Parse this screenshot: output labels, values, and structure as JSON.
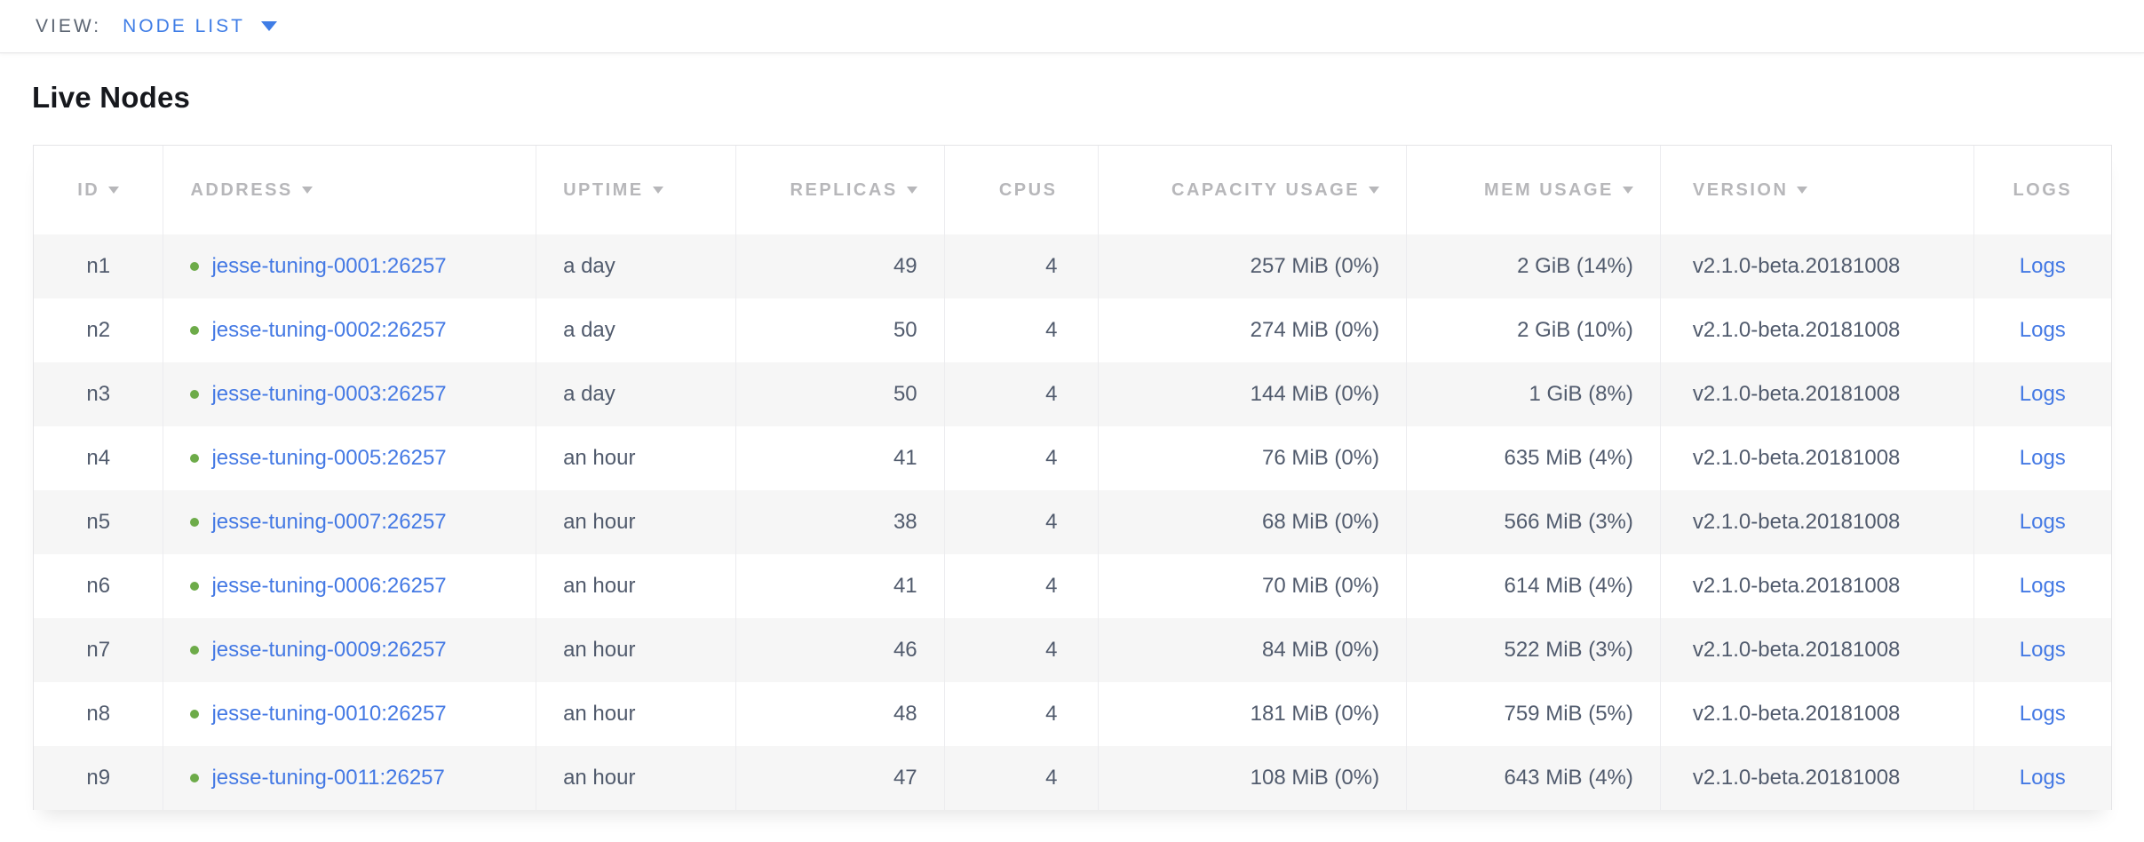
{
  "view_bar": {
    "label": "VIEW:",
    "selected": "NODE LIST"
  },
  "page": {
    "title": "Live Nodes"
  },
  "colors": {
    "link_blue": "#4479e4",
    "dropdown_blue": "#3f7de6",
    "node_live_green": "#6dab49",
    "header_gray": "#b7b7ba",
    "cell_text": "#515b6d",
    "row_stripe": "#f6f6f6"
  },
  "table": {
    "logs_label": "Logs",
    "columns": [
      {
        "key": "id",
        "label": "ID",
        "sortable": true
      },
      {
        "key": "address",
        "label": "ADDRESS",
        "sortable": true
      },
      {
        "key": "uptime",
        "label": "UPTIME",
        "sortable": true
      },
      {
        "key": "replicas",
        "label": "REPLICAS",
        "sortable": true
      },
      {
        "key": "cpus",
        "label": "CPUS",
        "sortable": false
      },
      {
        "key": "capacity_usage",
        "label": "CAPACITY USAGE",
        "sortable": true
      },
      {
        "key": "mem_usage",
        "label": "MEM USAGE",
        "sortable": true
      },
      {
        "key": "version",
        "label": "VERSION",
        "sortable": true
      },
      {
        "key": "logs",
        "label": "LOGS",
        "sortable": false
      }
    ],
    "rows": [
      {
        "id": "n1",
        "address": "jesse-tuning-0001:26257",
        "uptime": "a day",
        "replicas": "49",
        "cpus": "4",
        "capacity_usage": "257 MiB (0%)",
        "mem_usage": "2 GiB (14%)",
        "version": "v2.1.0-beta.20181008"
      },
      {
        "id": "n2",
        "address": "jesse-tuning-0002:26257",
        "uptime": "a day",
        "replicas": "50",
        "cpus": "4",
        "capacity_usage": "274 MiB (0%)",
        "mem_usage": "2 GiB (10%)",
        "version": "v2.1.0-beta.20181008"
      },
      {
        "id": "n3",
        "address": "jesse-tuning-0003:26257",
        "uptime": "a day",
        "replicas": "50",
        "cpus": "4",
        "capacity_usage": "144 MiB (0%)",
        "mem_usage": "1 GiB (8%)",
        "version": "v2.1.0-beta.20181008"
      },
      {
        "id": "n4",
        "address": "jesse-tuning-0005:26257",
        "uptime": "an hour",
        "replicas": "41",
        "cpus": "4",
        "capacity_usage": "76 MiB (0%)",
        "mem_usage": "635 MiB (4%)",
        "version": "v2.1.0-beta.20181008"
      },
      {
        "id": "n5",
        "address": "jesse-tuning-0007:26257",
        "uptime": "an hour",
        "replicas": "38",
        "cpus": "4",
        "capacity_usage": "68 MiB (0%)",
        "mem_usage": "566 MiB (3%)",
        "version": "v2.1.0-beta.20181008"
      },
      {
        "id": "n6",
        "address": "jesse-tuning-0006:26257",
        "uptime": "an hour",
        "replicas": "41",
        "cpus": "4",
        "capacity_usage": "70 MiB (0%)",
        "mem_usage": "614 MiB (4%)",
        "version": "v2.1.0-beta.20181008"
      },
      {
        "id": "n7",
        "address": "jesse-tuning-0009:26257",
        "uptime": "an hour",
        "replicas": "46",
        "cpus": "4",
        "capacity_usage": "84 MiB (0%)",
        "mem_usage": "522 MiB (3%)",
        "version": "v2.1.0-beta.20181008"
      },
      {
        "id": "n8",
        "address": "jesse-tuning-0010:26257",
        "uptime": "an hour",
        "replicas": "48",
        "cpus": "4",
        "capacity_usage": "181 MiB (0%)",
        "mem_usage": "759 MiB (5%)",
        "version": "v2.1.0-beta.20181008"
      },
      {
        "id": "n9",
        "address": "jesse-tuning-0011:26257",
        "uptime": "an hour",
        "replicas": "47",
        "cpus": "4",
        "capacity_usage": "108 MiB (0%)",
        "mem_usage": "643 MiB (4%)",
        "version": "v2.1.0-beta.20181008"
      }
    ]
  }
}
